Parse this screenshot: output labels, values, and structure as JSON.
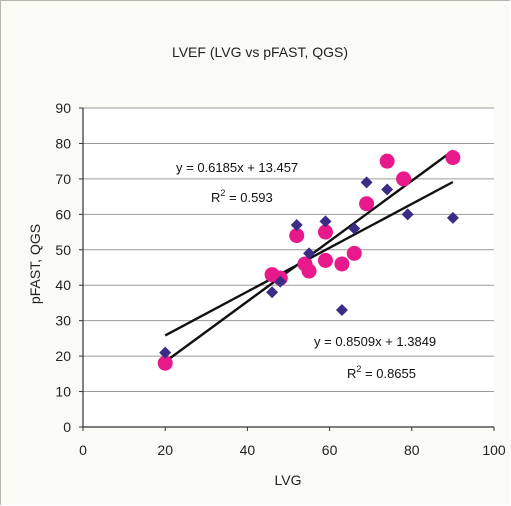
{
  "chart_data": {
    "type": "scatter",
    "title": "LVEF (LVG vs pFAST, QGS)",
    "xlabel": "LVG",
    "ylabel": "pFAST, QGS",
    "xlim": [
      0,
      100
    ],
    "ylim": [
      0,
      90
    ],
    "xticks": [
      0,
      20,
      40,
      60,
      80,
      100
    ],
    "yticks": [
      0,
      10,
      20,
      30,
      40,
      50,
      60,
      70,
      80,
      90
    ],
    "grid": "horizontal",
    "series": [
      {
        "marker": "diamond",
        "color": "#3b2d86",
        "points": [
          [
            20,
            21
          ],
          [
            46,
            38
          ],
          [
            48,
            41
          ],
          [
            52,
            57
          ],
          [
            55,
            49
          ],
          [
            59,
            58
          ],
          [
            63,
            33
          ],
          [
            66,
            56
          ],
          [
            69,
            69
          ],
          [
            74,
            67
          ],
          [
            79,
            60
          ],
          [
            90,
            59
          ]
        ],
        "trendline": {
          "slope": 0.6185,
          "intercept": 13.457,
          "x_range": [
            20,
            90
          ]
        }
      },
      {
        "marker": "circle",
        "color": "#e8198a",
        "points": [
          [
            20,
            18
          ],
          [
            46,
            43
          ],
          [
            48,
            42
          ],
          [
            52,
            54
          ],
          [
            54,
            46
          ],
          [
            55,
            44
          ],
          [
            59,
            47
          ],
          [
            59,
            55
          ],
          [
            63,
            46
          ],
          [
            66,
            49
          ],
          [
            69,
            63
          ],
          [
            74,
            75
          ],
          [
            78,
            70
          ],
          [
            90,
            76
          ]
        ],
        "trendline": {
          "slope": 0.8509,
          "intercept": 1.3849,
          "x_range": [
            20,
            90
          ]
        }
      }
    ],
    "annotations": {
      "eq1": {
        "text": "y = 0.6185x + 13.457",
        "r2_prefix": "R",
        "r2_exp": "2",
        "r2_value": " = 0.593"
      },
      "eq2": {
        "text": "y = 0.8509x + 1.3849",
        "r2_prefix": "R",
        "r2_exp": "2",
        "r2_value": " = 0.8655"
      }
    }
  }
}
